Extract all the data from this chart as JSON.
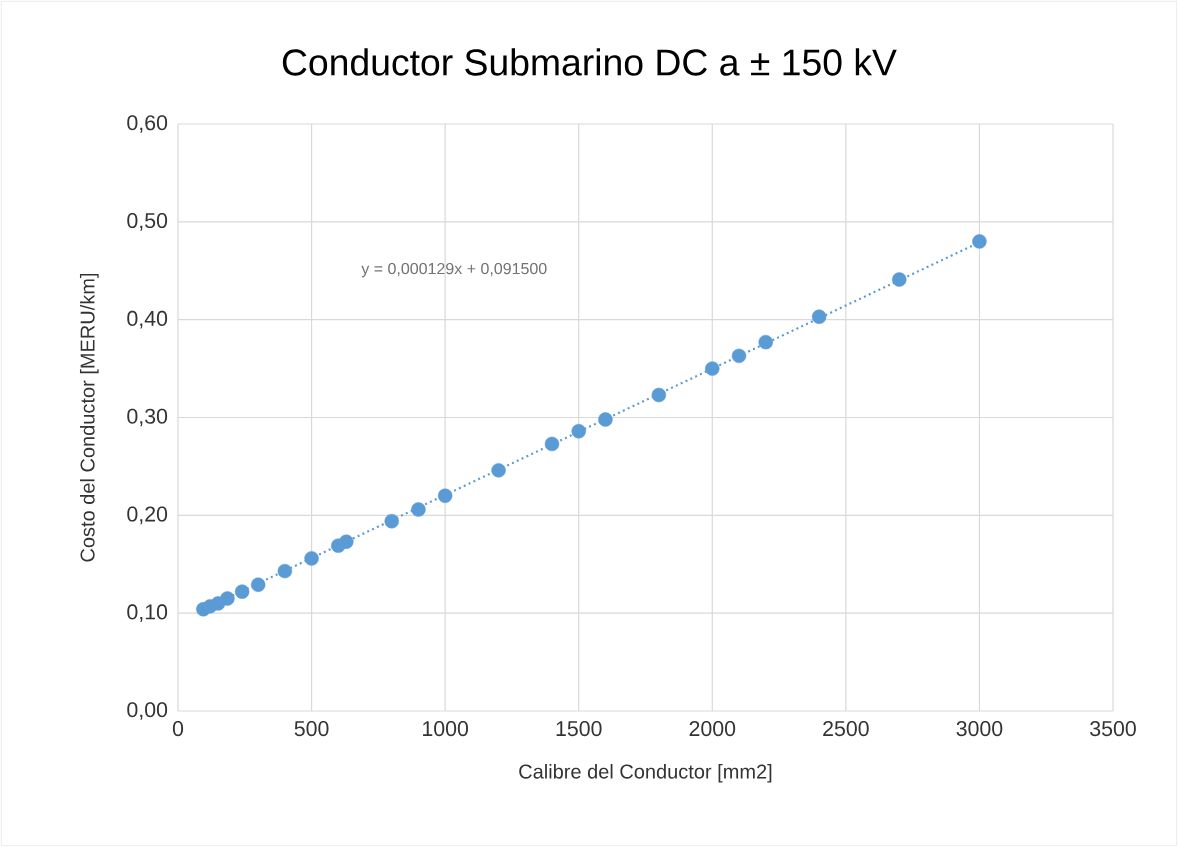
{
  "chart_data": {
    "type": "scatter",
    "title": "Conductor Submarino DC a ± 150 kV",
    "xlabel": "Calibre del Conductor [mm2]",
    "ylabel": "Costo del Conductor [MERU/km]",
    "annotations": [
      "y = 0,000129x + 0,091500"
    ],
    "xlim": [
      0,
      3500
    ],
    "ylim": [
      0,
      0.6
    ],
    "xticks": [
      0,
      500,
      1000,
      1500,
      2000,
      2500,
      3000,
      3500
    ],
    "yticks": [
      {
        "value": 0,
        "label": "0,00"
      },
      {
        "value": 0.1,
        "label": "0,10"
      },
      {
        "value": 0.2,
        "label": "0,20"
      },
      {
        "value": 0.3,
        "label": "0,30"
      },
      {
        "value": 0.4,
        "label": "0,40"
      },
      {
        "value": 0.5,
        "label": "0,50"
      },
      {
        "value": 0.6,
        "label": "0,60"
      }
    ],
    "grid": true,
    "series": [
      {
        "color": "#5b9bd5",
        "marker": "circle",
        "x": [
          95,
          120,
          150,
          185,
          240,
          300,
          400,
          500,
          600,
          630,
          800,
          900,
          1000,
          1200,
          1400,
          1500,
          1600,
          1800,
          2000,
          2100,
          2200,
          2400,
          2700,
          3000
        ],
        "values": [
          0.104,
          0.107,
          0.11,
          0.115,
          0.122,
          0.129,
          0.143,
          0.156,
          0.169,
          0.173,
          0.194,
          0.206,
          0.22,
          0.246,
          0.273,
          0.286,
          0.298,
          0.323,
          0.35,
          0.363,
          0.377,
          0.403,
          0.441,
          0.48
        ]
      },
      {
        "type": "line",
        "color": "#5b9bd5",
        "line_style": "dotted",
        "marker": "none",
        "x": [
          95,
          3000
        ],
        "values": [
          0.104,
          0.479
        ]
      }
    ]
  }
}
